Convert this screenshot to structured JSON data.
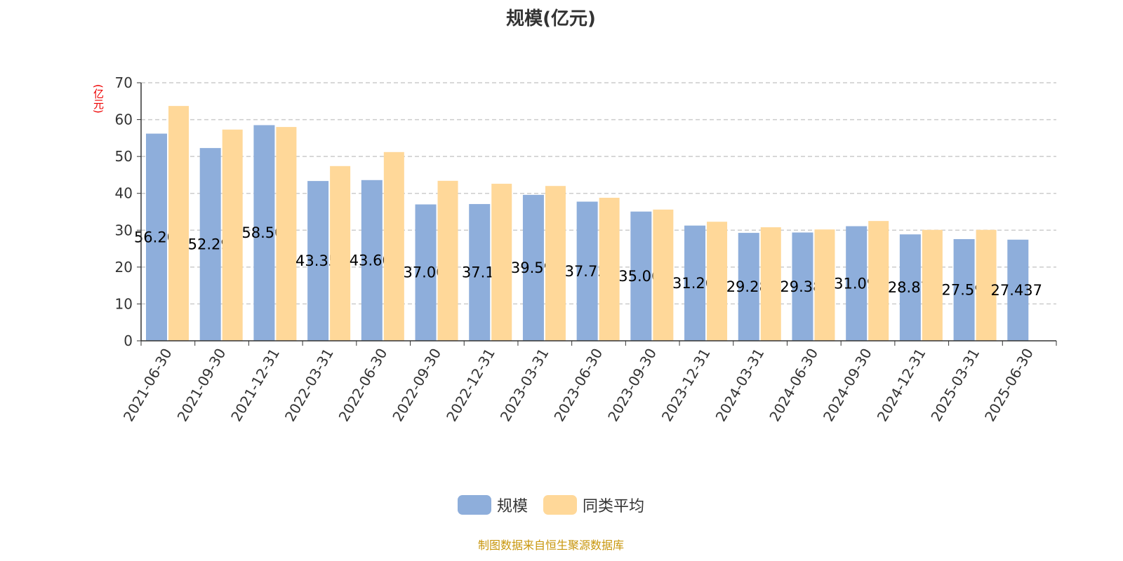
{
  "chart_data": {
    "type": "bar",
    "title": "规模(亿元)",
    "ylabel": "(亿元)",
    "ylim": [
      0,
      70
    ],
    "yticks": [
      0,
      10,
      20,
      30,
      40,
      50,
      60,
      70
    ],
    "grid": true,
    "legend_position": "bottom",
    "categories": [
      "2021-06-30",
      "2021-09-30",
      "2021-12-31",
      "2022-03-31",
      "2022-06-30",
      "2022-09-30",
      "2022-12-31",
      "2023-03-31",
      "2023-06-30",
      "2023-09-30",
      "2023-12-31",
      "2024-03-31",
      "2024-06-30",
      "2024-09-30",
      "2024-12-31",
      "2025-03-31",
      "2025-06-30"
    ],
    "series": [
      {
        "name": "规模",
        "color": "#8eaedb",
        "values": [
          56.2,
          52.29,
          58.5,
          43.35,
          43.6,
          37.0,
          37.1,
          39.59,
          37.75,
          35.06,
          31.26,
          29.28,
          29.38,
          31.09,
          28.87,
          27.59,
          27.437
        ],
        "labels": [
          "56.20",
          "52.29",
          "58.50",
          "43.35",
          "43.60",
          "37.00",
          "37.1",
          "39.59",
          "37.75",
          "35.06",
          "31.26",
          "29.28",
          "29.38",
          "31.09",
          "28.87",
          "27.59",
          "27.437"
        ]
      },
      {
        "name": "同类平均",
        "color": "#ffd899",
        "values": [
          63.7,
          57.3,
          58.0,
          47.4,
          51.2,
          43.4,
          42.6,
          42.0,
          38.8,
          35.6,
          32.3,
          30.8,
          30.2,
          32.5,
          30.1,
          30.1,
          null
        ]
      }
    ]
  },
  "source": "制图数据来自恒生聚源数据库"
}
